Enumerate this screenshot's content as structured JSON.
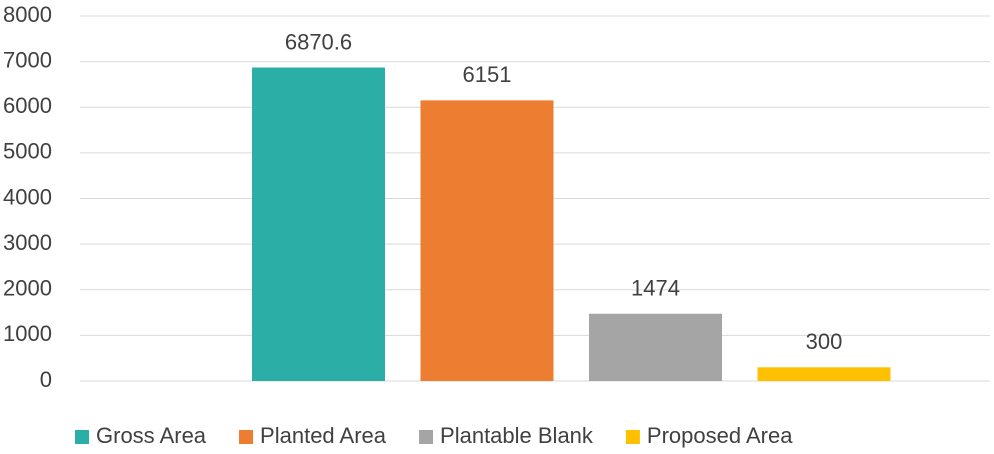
{
  "chart_data": {
    "type": "bar",
    "categories": [
      null
    ],
    "series": [
      {
        "name": "Gross Area",
        "color": "#2aaea5",
        "values": [
          6870.6
        ]
      },
      {
        "name": "Planted Area",
        "color": "#ed7d31",
        "values": [
          6151
        ]
      },
      {
        "name": "Plantable Blank",
        "color": "#a5a5a5",
        "values": [
          1474
        ]
      },
      {
        "name": "Proposed Area",
        "color": "#ffc000",
        "values": [
          300
        ]
      }
    ],
    "ylim": [
      0,
      8000
    ],
    "yticks": [
      0,
      1000,
      2000,
      3000,
      4000,
      5000,
      6000,
      7000,
      8000
    ],
    "grid": true,
    "legend": "bottom",
    "data_labels": true
  }
}
